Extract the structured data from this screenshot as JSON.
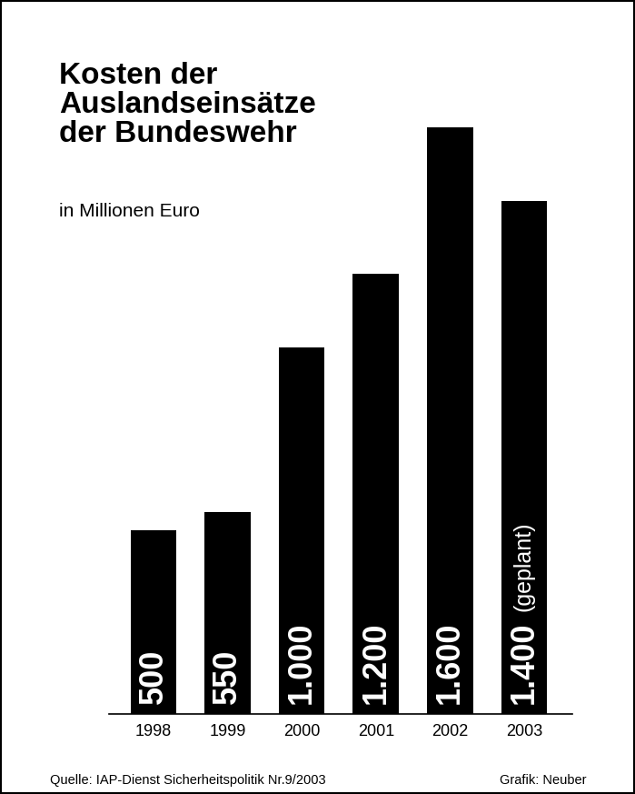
{
  "chart_data": {
    "type": "bar",
    "title": "Kosten der\nAuslandseinsätze\nder Bundeswehr",
    "subtitle": "in Millionen Euro",
    "categories": [
      "1998",
      "1999",
      "2000",
      "2001",
      "2002",
      "2003"
    ],
    "values": [
      500,
      550,
      1000,
      1200,
      1600,
      1400
    ],
    "value_labels": [
      "500",
      "550",
      "1.000",
      "1.200",
      "1.600",
      "1.400"
    ],
    "data_labels": true,
    "color": "#000000",
    "ylim": [
      0,
      1600
    ],
    "tick_labels": "x",
    "grid": false,
    "annotations": [
      {
        "category": "2003",
        "text": "(geplant)"
      }
    ],
    "source": "Quelle: IAP-Dienst Sicherheitspolitik Nr.9/2003",
    "credit": "Grafik: Neuber"
  }
}
